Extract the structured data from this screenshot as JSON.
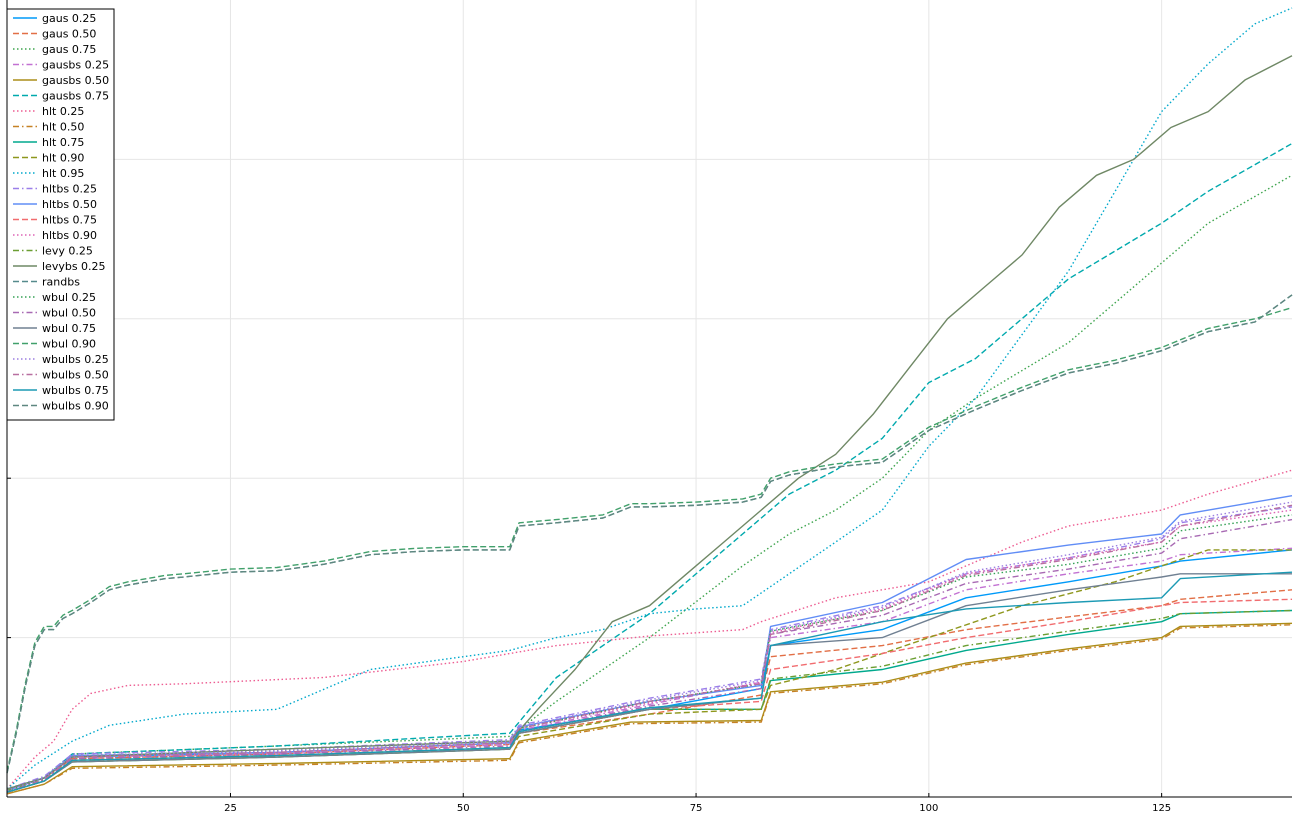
{
  "chart_data": {
    "type": "line",
    "title": "",
    "xlabel": "",
    "ylabel": "",
    "xlim": [
      1,
      139
    ],
    "ylim": [
      0,
      5
    ],
    "x_ticks": [
      25,
      50,
      75,
      100,
      125
    ],
    "y_ticks": [
      1,
      2,
      3,
      4
    ],
    "grid": true,
    "legend_position": "top-left",
    "series": [
      {
        "name": "gaus 0.25",
        "color": "#009af9",
        "dash": "solid",
        "x": [
          1,
          5,
          8,
          30,
          55,
          56,
          70,
          82,
          83,
          95,
          104,
          115,
          125,
          127,
          139
        ],
        "y": [
          0.05,
          0.12,
          0.25,
          0.28,
          0.34,
          0.42,
          0.55,
          0.68,
          0.95,
          1.05,
          1.25,
          1.35,
          1.45,
          1.48,
          1.55
        ]
      },
      {
        "name": "gaus 0.50",
        "color": "#e26f46",
        "dash": "dashed",
        "x": [
          1,
          5,
          8,
          30,
          55,
          56,
          70,
          82,
          83,
          95,
          104,
          115,
          125,
          127,
          139
        ],
        "y": [
          0.05,
          0.12,
          0.24,
          0.27,
          0.33,
          0.4,
          0.52,
          0.64,
          0.88,
          0.95,
          1.05,
          1.13,
          1.2,
          1.24,
          1.3
        ]
      },
      {
        "name": "gaus 0.75",
        "color": "#3da44d",
        "dash": "dotted",
        "x": [
          1,
          5,
          8,
          30,
          55,
          60,
          70,
          80,
          85,
          90,
          95,
          100,
          105,
          115,
          125,
          130,
          139
        ],
        "y": [
          0.05,
          0.12,
          0.27,
          0.32,
          0.38,
          0.6,
          1.0,
          1.45,
          1.65,
          1.8,
          2.0,
          2.3,
          2.5,
          2.85,
          3.35,
          3.6,
          3.9
        ]
      },
      {
        "name": "gausbs 0.25",
        "color": "#c271d2",
        "dash": "dashdot",
        "x": [
          1,
          5,
          8,
          30,
          55,
          56,
          70,
          82,
          83,
          95,
          104,
          115,
          125,
          127,
          139
        ],
        "y": [
          0.03,
          0.1,
          0.25,
          0.27,
          0.33,
          0.42,
          0.58,
          0.72,
          1.0,
          1.1,
          1.3,
          1.4,
          1.48,
          1.52,
          1.56
        ]
      },
      {
        "name": "gausbs 0.50",
        "color": "#ac8d18",
        "dash": "solid",
        "x": [
          1,
          5,
          8,
          30,
          55,
          56,
          68,
          82,
          83,
          95,
          104,
          115,
          125,
          127,
          139
        ],
        "y": [
          0.02,
          0.08,
          0.19,
          0.21,
          0.24,
          0.35,
          0.47,
          0.48,
          0.66,
          0.72,
          0.84,
          0.93,
          1.0,
          1.07,
          1.09
        ]
      },
      {
        "name": "gausbs 0.75",
        "color": "#00a9ad",
        "dash": "dashed",
        "x": [
          1,
          5,
          8,
          30,
          55,
          60,
          70,
          80,
          85,
          90,
          95,
          100,
          105,
          115,
          125,
          130,
          139
        ],
        "y": [
          0.05,
          0.12,
          0.27,
          0.32,
          0.4,
          0.75,
          1.15,
          1.65,
          1.9,
          2.05,
          2.25,
          2.6,
          2.75,
          3.25,
          3.6,
          3.8,
          4.1
        ]
      },
      {
        "name": "hlt 0.25",
        "color": "#ed5d92",
        "dash": "dotted",
        "x": [
          1,
          4,
          6,
          8,
          10,
          14,
          20,
          35,
          50,
          55,
          60,
          70,
          80,
          82,
          90,
          100,
          110,
          115,
          120,
          125,
          130,
          139
        ],
        "y": [
          0.05,
          0.25,
          0.35,
          0.55,
          0.65,
          0.7,
          0.71,
          0.75,
          0.85,
          0.9,
          0.95,
          1.01,
          1.05,
          1.1,
          1.25,
          1.35,
          1.6,
          1.7,
          1.75,
          1.8,
          1.9,
          2.05
        ]
      },
      {
        "name": "hlt 0.50",
        "color": "#c68125",
        "dash": "dashdot",
        "x": [
          1,
          5,
          8,
          30,
          55,
          56,
          68,
          82,
          83,
          95,
          104,
          115,
          125,
          127,
          139
        ],
        "y": [
          0.02,
          0.08,
          0.18,
          0.2,
          0.23,
          0.34,
          0.46,
          0.47,
          0.65,
          0.71,
          0.83,
          0.92,
          0.99,
          1.06,
          1.08
        ]
      },
      {
        "name": "hlt 0.75",
        "color": "#00a98d",
        "dash": "solid",
        "x": [
          1,
          5,
          8,
          30,
          55,
          56,
          70,
          82,
          83,
          95,
          104,
          115,
          125,
          127,
          139
        ],
        "y": [
          0.03,
          0.1,
          0.22,
          0.25,
          0.3,
          0.4,
          0.55,
          0.55,
          0.73,
          0.8,
          0.92,
          1.02,
          1.1,
          1.15,
          1.17
        ]
      },
      {
        "name": "hlt 0.90",
        "color": "#8e971d",
        "dash": "dashed",
        "x": [
          1,
          5,
          8,
          30,
          55,
          56,
          70,
          82,
          83,
          90,
          100,
          110,
          120,
          125,
          130,
          139
        ],
        "y": [
          0.03,
          0.1,
          0.22,
          0.25,
          0.3,
          0.38,
          0.52,
          0.55,
          0.7,
          0.8,
          1.0,
          1.2,
          1.35,
          1.45,
          1.55,
          1.55
        ]
      },
      {
        "name": "hlt 0.95",
        "color": "#00a8cb",
        "dash": "dotted",
        "x": [
          1,
          4,
          8,
          12,
          20,
          30,
          40,
          50,
          55,
          60,
          65,
          70,
          75,
          80,
          85,
          90,
          95,
          100,
          105,
          110,
          115,
          120,
          125,
          130,
          135,
          139
        ],
        "y": [
          0.05,
          0.2,
          0.35,
          0.45,
          0.52,
          0.55,
          0.8,
          0.88,
          0.92,
          1.0,
          1.05,
          1.15,
          1.18,
          1.2,
          1.4,
          1.6,
          1.8,
          2.2,
          2.5,
          2.9,
          3.3,
          3.8,
          4.3,
          4.6,
          4.85,
          4.95
        ]
      },
      {
        "name": "hltbs 0.25",
        "color": "#9b7fe9",
        "dash": "dashdot",
        "x": [
          1,
          5,
          8,
          30,
          55,
          56,
          70,
          82,
          83,
          95,
          104,
          115,
          125,
          127,
          139
        ],
        "y": [
          0.05,
          0.13,
          0.27,
          0.3,
          0.36,
          0.45,
          0.62,
          0.74,
          1.05,
          1.2,
          1.4,
          1.5,
          1.62,
          1.72,
          1.82
        ]
      },
      {
        "name": "hltbs 0.50",
        "color": "#618df6",
        "dash": "solid",
        "x": [
          1,
          5,
          8,
          30,
          55,
          56,
          70,
          82,
          83,
          95,
          104,
          115,
          125,
          127,
          139
        ],
        "y": [
          0.04,
          0.12,
          0.26,
          0.28,
          0.34,
          0.44,
          0.6,
          0.7,
          1.07,
          1.22,
          1.49,
          1.58,
          1.65,
          1.77,
          1.89
        ]
      },
      {
        "name": "hltbs 0.75",
        "color": "#f16c6f",
        "dash": "dashed",
        "x": [
          1,
          5,
          8,
          30,
          55,
          56,
          70,
          82,
          83,
          95,
          104,
          115,
          125,
          127,
          139
        ],
        "y": [
          0.03,
          0.1,
          0.23,
          0.26,
          0.31,
          0.4,
          0.55,
          0.6,
          0.8,
          0.9,
          1.0,
          1.1,
          1.2,
          1.22,
          1.24
        ]
      },
      {
        "name": "hltbs 0.90",
        "color": "#dd64b5",
        "dash": "dotted",
        "x": [
          1,
          5,
          8,
          30,
          55,
          56,
          70,
          82,
          83,
          95,
          104,
          115,
          125,
          127,
          139
        ],
        "y": [
          0.04,
          0.12,
          0.25,
          0.28,
          0.34,
          0.43,
          0.59,
          0.72,
          1.03,
          1.18,
          1.4,
          1.5,
          1.6,
          1.7,
          1.8
        ]
      },
      {
        "name": "levy 0.25",
        "color": "#6b9e32",
        "dash": "dashdot",
        "x": [
          1,
          5,
          8,
          30,
          55,
          56,
          70,
          82,
          83,
          95,
          104,
          115,
          125,
          127,
          139
        ],
        "y": [
          0.04,
          0.11,
          0.23,
          0.26,
          0.31,
          0.4,
          0.55,
          0.55,
          0.74,
          0.82,
          0.95,
          1.04,
          1.12,
          1.15,
          1.17
        ]
      },
      {
        "name": "levybs 0.25",
        "color": "#6f8865",
        "dash": "solid",
        "x": [
          1,
          5,
          8,
          30,
          55,
          58,
          62,
          66,
          70,
          74,
          78,
          82,
          86,
          90,
          94,
          98,
          102,
          106,
          110,
          114,
          118,
          122,
          126,
          130,
          134,
          139
        ],
        "y": [
          0.05,
          0.12,
          0.25,
          0.3,
          0.35,
          0.55,
          0.8,
          1.1,
          1.2,
          1.4,
          1.6,
          1.8,
          2.0,
          2.15,
          2.4,
          2.7,
          3.0,
          3.2,
          3.4,
          3.7,
          3.9,
          4.0,
          4.2,
          4.3,
          4.5,
          4.65
        ]
      },
      {
        "name": "randbs",
        "color": "#558a8c",
        "dash": "dashed",
        "x": [
          1,
          2,
          3,
          4,
          5,
          6,
          7,
          8,
          10,
          12,
          14,
          16,
          18,
          20,
          25,
          30,
          35,
          40,
          45,
          50,
          55,
          56,
          60,
          65,
          68,
          70,
          75,
          80,
          82,
          83,
          85,
          90,
          95,
          100,
          105,
          110,
          115,
          120,
          125,
          130,
          135,
          139
        ],
        "y": [
          0.15,
          0.4,
          0.7,
          0.95,
          1.05,
          1.05,
          1.12,
          1.15,
          1.22,
          1.3,
          1.33,
          1.35,
          1.37,
          1.38,
          1.41,
          1.42,
          1.46,
          1.52,
          1.54,
          1.55,
          1.55,
          1.7,
          1.72,
          1.75,
          1.82,
          1.82,
          1.83,
          1.85,
          1.88,
          1.98,
          2.02,
          2.07,
          2.1,
          2.3,
          2.43,
          2.55,
          2.66,
          2.72,
          2.8,
          2.92,
          2.98,
          3.15
        ]
      },
      {
        "name": "wbul 0.25",
        "color": "#35a155",
        "dash": "dotted",
        "x": [
          1,
          5,
          8,
          30,
          55,
          56,
          70,
          82,
          83,
          95,
          104,
          115,
          125,
          127,
          139
        ],
        "y": [
          0.04,
          0.12,
          0.26,
          0.29,
          0.35,
          0.43,
          0.6,
          0.71,
          1.04,
          1.17,
          1.38,
          1.46,
          1.56,
          1.67,
          1.77
        ]
      },
      {
        "name": "wbul 0.50",
        "color": "#a86ab3",
        "dash": "dashdot",
        "x": [
          1,
          5,
          8,
          30,
          55,
          56,
          70,
          82,
          83,
          95,
          104,
          115,
          125,
          127,
          139
        ],
        "y": [
          0.03,
          0.11,
          0.24,
          0.27,
          0.32,
          0.41,
          0.57,
          0.68,
          1.02,
          1.14,
          1.34,
          1.43,
          1.53,
          1.62,
          1.74
        ]
      },
      {
        "name": "wbul 0.75",
        "color": "#708092",
        "dash": "solid",
        "x": [
          1,
          5,
          8,
          30,
          55,
          56,
          70,
          82,
          83,
          95,
          104,
          115,
          125,
          127,
          139
        ],
        "y": [
          0.03,
          0.1,
          0.22,
          0.25,
          0.3,
          0.4,
          0.55,
          0.62,
          0.95,
          1.0,
          1.2,
          1.3,
          1.38,
          1.4,
          1.4
        ]
      },
      {
        "name": "wbul 0.90",
        "color": "#41a06b",
        "dash": "dashed",
        "x": [
          1,
          2,
          3,
          4,
          5,
          6,
          7,
          8,
          10,
          12,
          14,
          16,
          18,
          20,
          25,
          30,
          35,
          40,
          45,
          50,
          55,
          56,
          60,
          65,
          68,
          70,
          75,
          80,
          82,
          83,
          85,
          90,
          95,
          100,
          105,
          110,
          115,
          120,
          125,
          130,
          135,
          139
        ],
        "y": [
          0.16,
          0.42,
          0.72,
          0.97,
          1.07,
          1.07,
          1.14,
          1.17,
          1.24,
          1.32,
          1.35,
          1.37,
          1.39,
          1.4,
          1.43,
          1.44,
          1.48,
          1.54,
          1.56,
          1.57,
          1.57,
          1.72,
          1.74,
          1.77,
          1.84,
          1.84,
          1.85,
          1.87,
          1.9,
          2.0,
          2.04,
          2.09,
          2.12,
          2.32,
          2.45,
          2.57,
          2.68,
          2.74,
          2.82,
          2.94,
          3.0,
          3.07
        ]
      },
      {
        "name": "wbulbs 0.25",
        "color": "#9c7fe0",
        "dash": "dotted",
        "x": [
          1,
          5,
          8,
          30,
          55,
          56,
          70,
          82,
          83,
          95,
          104,
          115,
          125,
          127,
          139
        ],
        "y": [
          0.04,
          0.12,
          0.26,
          0.29,
          0.35,
          0.44,
          0.61,
          0.73,
          1.04,
          1.19,
          1.41,
          1.52,
          1.63,
          1.73,
          1.85
        ]
      },
      {
        "name": "wbulbs 0.50",
        "color": "#b86fa0",
        "dash": "dashdot",
        "x": [
          1,
          5,
          8,
          30,
          55,
          56,
          70,
          82,
          83,
          95,
          104,
          115,
          125,
          127,
          139
        ],
        "y": [
          0.03,
          0.11,
          0.25,
          0.28,
          0.34,
          0.43,
          0.6,
          0.71,
          1.02,
          1.17,
          1.39,
          1.49,
          1.6,
          1.7,
          1.83
        ]
      },
      {
        "name": "wbulbs 0.75",
        "color": "#1c9ab4",
        "dash": "solid",
        "x": [
          1,
          5,
          8,
          30,
          55,
          56,
          70,
          82,
          83,
          95,
          104,
          115,
          125,
          127,
          139
        ],
        "y": [
          0.03,
          0.1,
          0.23,
          0.26,
          0.31,
          0.41,
          0.56,
          0.62,
          0.95,
          1.1,
          1.18,
          1.22,
          1.25,
          1.37,
          1.41
        ]
      },
      {
        "name": "wbulbs 0.90",
        "color": "#5e8780",
        "dash": "dashed",
        "x": [
          1,
          2,
          3,
          4,
          5,
          6,
          7,
          8,
          10,
          12,
          14,
          16,
          18,
          20,
          25,
          30,
          35,
          40,
          45,
          50,
          55,
          56,
          60,
          65,
          68,
          70,
          75,
          80,
          82,
          83,
          85,
          90,
          95,
          100,
          105,
          110,
          115,
          120,
          125,
          130,
          135,
          139
        ],
        "y": [
          0.15,
          0.4,
          0.7,
          0.95,
          1.05,
          1.05,
          1.12,
          1.15,
          1.22,
          1.3,
          1.33,
          1.35,
          1.37,
          1.38,
          1.41,
          1.42,
          1.46,
          1.52,
          1.54,
          1.55,
          1.55,
          1.7,
          1.72,
          1.75,
          1.82,
          1.82,
          1.83,
          1.85,
          1.88,
          1.98,
          2.02,
          2.07,
          2.1,
          2.3,
          2.43,
          2.55,
          2.66,
          2.72,
          2.8,
          2.92,
          2.98,
          3.15
        ]
      }
    ]
  }
}
